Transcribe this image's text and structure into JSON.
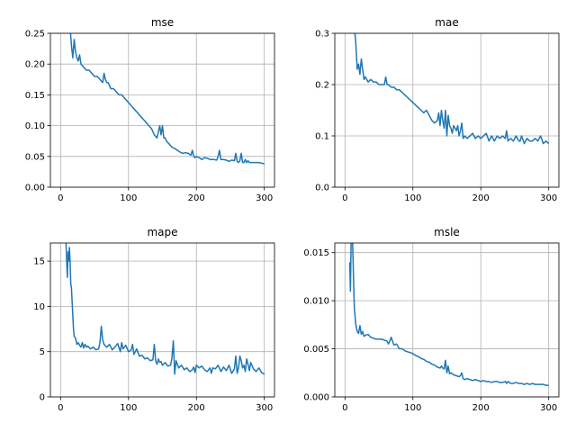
{
  "figure": {
    "background": "#ffffff",
    "line_color": "#1f77b4",
    "grid": true
  },
  "chart_data": [
    {
      "type": "line",
      "title": "mse",
      "xlim": [
        -15,
        315
      ],
      "ylim": [
        0,
        0.25
      ],
      "xticks": [
        0,
        100,
        200,
        300
      ],
      "xtick_labels": [
        "0",
        "100",
        "200",
        "300"
      ],
      "yticks": [
        0,
        0.05,
        0.1,
        0.15,
        0.2,
        0.25
      ],
      "ytick_labels": [
        "0.00",
        "0.05",
        "0.10",
        "0.15",
        "0.20",
        "0.25"
      ],
      "series": [
        {
          "x": [
            10,
            14,
            16,
            18,
            20,
            22,
            24,
            26,
            28,
            30,
            34,
            38,
            42,
            46,
            50,
            54,
            58,
            62,
            64,
            66,
            68,
            70,
            74,
            78,
            82,
            86,
            90,
            94,
            98,
            102,
            106,
            110,
            114,
            118,
            122,
            126,
            130,
            134,
            138,
            142,
            144,
            146,
            148,
            150,
            152,
            154,
            156,
            160,
            164,
            168,
            172,
            176,
            180,
            184,
            188,
            192,
            194,
            196,
            198,
            200,
            204,
            208,
            212,
            216,
            220,
            226,
            230,
            232,
            234,
            236,
            240,
            244,
            248,
            252,
            256,
            258,
            260,
            262,
            264,
            266,
            268,
            270,
            272,
            274,
            276,
            278,
            280,
            284,
            288,
            292,
            296,
            300
          ],
          "y": [
            0.27,
            0.26,
            0.23,
            0.21,
            0.24,
            0.22,
            0.21,
            0.205,
            0.215,
            0.2,
            0.195,
            0.19,
            0.19,
            0.185,
            0.18,
            0.18,
            0.175,
            0.17,
            0.185,
            0.175,
            0.17,
            0.17,
            0.16,
            0.16,
            0.155,
            0.15,
            0.15,
            0.145,
            0.14,
            0.135,
            0.13,
            0.125,
            0.12,
            0.115,
            0.11,
            0.105,
            0.1,
            0.095,
            0.085,
            0.08,
            0.09,
            0.1,
            0.085,
            0.1,
            0.08,
            0.08,
            0.075,
            0.07,
            0.065,
            0.063,
            0.06,
            0.057,
            0.055,
            0.056,
            0.055,
            0.052,
            0.06,
            0.05,
            0.048,
            0.05,
            0.048,
            0.045,
            0.048,
            0.047,
            0.045,
            0.045,
            0.044,
            0.05,
            0.06,
            0.045,
            0.045,
            0.044,
            0.042,
            0.044,
            0.043,
            0.055,
            0.042,
            0.04,
            0.043,
            0.055,
            0.04,
            0.04,
            0.045,
            0.04,
            0.043,
            0.04,
            0.04,
            0.04,
            0.04,
            0.04,
            0.039,
            0.038
          ]
        }
      ]
    },
    {
      "type": "line",
      "title": "mae",
      "xlim": [
        -15,
        315
      ],
      "ylim": [
        0,
        0.3
      ],
      "xticks": [
        0,
        100,
        200,
        300
      ],
      "xtick_labels": [
        "0",
        "100",
        "200",
        "300"
      ],
      "yticks": [
        0,
        0.1,
        0.2,
        0.3
      ],
      "ytick_labels": [
        "0.0",
        "0.1",
        "0.2",
        "0.3"
      ],
      "series": [
        {
          "x": [
            14,
            16,
            18,
            20,
            22,
            24,
            26,
            28,
            30,
            34,
            38,
            42,
            46,
            50,
            54,
            58,
            60,
            62,
            64,
            68,
            72,
            76,
            80,
            84,
            88,
            92,
            96,
            100,
            104,
            108,
            112,
            116,
            120,
            124,
            128,
            132,
            136,
            138,
            140,
            142,
            144,
            146,
            148,
            150,
            152,
            154,
            156,
            158,
            160,
            162,
            164,
            166,
            168,
            170,
            172,
            174,
            176,
            180,
            184,
            188,
            192,
            196,
            200,
            204,
            208,
            212,
            216,
            220,
            224,
            228,
            232,
            236,
            238,
            240,
            244,
            248,
            252,
            256,
            258,
            260,
            264,
            268,
            272,
            276,
            280,
            284,
            288,
            292,
            296,
            300
          ],
          "y": [
            0.31,
            0.28,
            0.23,
            0.24,
            0.22,
            0.25,
            0.23,
            0.21,
            0.215,
            0.205,
            0.21,
            0.205,
            0.205,
            0.2,
            0.2,
            0.2,
            0.215,
            0.2,
            0.2,
            0.195,
            0.195,
            0.19,
            0.19,
            0.185,
            0.18,
            0.175,
            0.17,
            0.165,
            0.16,
            0.155,
            0.15,
            0.145,
            0.15,
            0.14,
            0.13,
            0.125,
            0.13,
            0.145,
            0.12,
            0.15,
            0.13,
            0.115,
            0.15,
            0.1,
            0.14,
            0.12,
            0.115,
            0.105,
            0.12,
            0.115,
            0.11,
            0.12,
            0.1,
            0.11,
            0.125,
            0.095,
            0.1,
            0.095,
            0.1,
            0.105,
            0.095,
            0.1,
            0.095,
            0.1,
            0.105,
            0.09,
            0.1,
            0.09,
            0.1,
            0.095,
            0.1,
            0.095,
            0.11,
            0.09,
            0.095,
            0.09,
            0.1,
            0.09,
            0.09,
            0.1,
            0.085,
            0.095,
            0.09,
            0.09,
            0.095,
            0.09,
            0.1,
            0.085,
            0.09,
            0.085
          ]
        }
      ]
    },
    {
      "type": "line",
      "title": "mape",
      "xlim": [
        -15,
        315
      ],
      "ylim": [
        0,
        17
      ],
      "xticks": [
        0,
        100,
        200,
        300
      ],
      "xtick_labels": [
        "0",
        "100",
        "200",
        "300"
      ],
      "yticks": [
        0,
        5,
        10,
        15
      ],
      "ytick_labels": [
        "0",
        "5",
        "10",
        "15"
      ],
      "series": [
        {
          "x": [
            8,
            9,
            10,
            11,
            12,
            13,
            14,
            15,
            16,
            17,
            18,
            19,
            20,
            22,
            24,
            26,
            28,
            30,
            32,
            34,
            36,
            38,
            40,
            44,
            48,
            52,
            56,
            58,
            60,
            62,
            64,
            68,
            72,
            76,
            80,
            84,
            88,
            90,
            92,
            96,
            100,
            104,
            106,
            108,
            112,
            116,
            120,
            124,
            128,
            132,
            136,
            138,
            140,
            142,
            144,
            146,
            148,
            150,
            154,
            158,
            162,
            164,
            166,
            168,
            170,
            174,
            178,
            182,
            186,
            190,
            194,
            196,
            198,
            200,
            204,
            208,
            212,
            216,
            220,
            222,
            224,
            228,
            232,
            236,
            240,
            244,
            248,
            252,
            256,
            258,
            260,
            262,
            264,
            266,
            268,
            270,
            272,
            274,
            276,
            278,
            280,
            284,
            288,
            292,
            296,
            300
          ],
          "y": [
            17,
            15,
            13.2,
            16,
            15,
            16.5,
            15,
            12.5,
            12,
            10.5,
            9,
            7.5,
            6.7,
            6.5,
            5.8,
            6,
            5.7,
            5.5,
            6,
            5.4,
            5.8,
            5.5,
            5.6,
            5.3,
            5.5,
            5.2,
            5.3,
            6,
            7.8,
            6.3,
            5.8,
            5.5,
            5.8,
            5.2,
            5.5,
            5.9,
            5,
            6,
            5.3,
            5.7,
            5,
            5.2,
            5.8,
            4.7,
            5.3,
            4.5,
            4.6,
            4.2,
            4.3,
            4,
            4.1,
            5.8,
            4,
            3.6,
            4.2,
            3.8,
            3.9,
            3.5,
            3.8,
            3.4,
            3.5,
            4.3,
            6.2,
            2.5,
            4,
            3.2,
            3.5,
            3,
            3.2,
            2.8,
            3,
            3.3,
            2.7,
            3.5,
            3.2,
            3.4,
            3,
            2.8,
            3.2,
            2.6,
            3.2,
            3.1,
            3.5,
            2.8,
            3.3,
            2.9,
            3.5,
            2.6,
            3.1,
            4.5,
            2.6,
            3.2,
            4.5,
            4,
            3.2,
            3.5,
            2.8,
            4.2,
            3.6,
            2.9,
            3.8,
            3.1,
            2.8,
            3.2,
            2.7,
            2.5
          ]
        }
      ]
    },
    {
      "type": "line",
      "title": "msle",
      "xlim": [
        -15,
        315
      ],
      "ylim": [
        0,
        0.016
      ],
      "xticks": [
        0,
        100,
        200,
        300
      ],
      "xtick_labels": [
        "0",
        "100",
        "200",
        "300"
      ],
      "yticks": [
        0,
        0.005,
        0.01,
        0.015
      ],
      "ytick_labels": [
        "0.000",
        "0.005",
        "0.010",
        "0.015"
      ],
      "series": [
        {
          "x": [
            7,
            8,
            9,
            10,
            11,
            12,
            13,
            14,
            16,
            18,
            20,
            22,
            24,
            26,
            28,
            30,
            34,
            38,
            42,
            46,
            50,
            54,
            58,
            62,
            64,
            66,
            68,
            72,
            76,
            80,
            84,
            88,
            92,
            96,
            100,
            104,
            108,
            112,
            116,
            120,
            124,
            128,
            132,
            136,
            140,
            142,
            144,
            146,
            148,
            150,
            152,
            154,
            156,
            160,
            164,
            168,
            170,
            172,
            174,
            176,
            180,
            184,
            188,
            192,
            196,
            200,
            204,
            208,
            212,
            216,
            220,
            224,
            228,
            232,
            236,
            238,
            240,
            244,
            248,
            252,
            256,
            260,
            264,
            268,
            272,
            276,
            280,
            284,
            288,
            292,
            296,
            300
          ],
          "y": [
            0.014,
            0.011,
            0.016,
            0.017,
            0.0165,
            0.014,
            0.011,
            0.009,
            0.0075,
            0.0068,
            0.0066,
            0.0074,
            0.0065,
            0.0068,
            0.0063,
            0.0064,
            0.0065,
            0.0062,
            0.0061,
            0.006,
            0.006,
            0.006,
            0.0059,
            0.0058,
            0.0055,
            0.0058,
            0.0062,
            0.0054,
            0.0055,
            0.005,
            0.005,
            0.0048,
            0.0047,
            0.0046,
            0.0045,
            0.0043,
            0.0042,
            0.004,
            0.0039,
            0.0037,
            0.0036,
            0.0034,
            0.0033,
            0.0031,
            0.003,
            0.0032,
            0.003,
            0.0029,
            0.0038,
            0.0025,
            0.0032,
            0.0024,
            0.0025,
            0.0023,
            0.0022,
            0.0021,
            0.0022,
            0.0025,
            0.0019,
            0.0018,
            0.0019,
            0.0018,
            0.0017,
            0.0018,
            0.0017,
            0.0016,
            0.0017,
            0.0016,
            0.0016,
            0.0015,
            0.0016,
            0.0016,
            0.0015,
            0.0015,
            0.0016,
            0.0014,
            0.0016,
            0.0014,
            0.0014,
            0.0015,
            0.0014,
            0.0014,
            0.0013,
            0.0014,
            0.0013,
            0.0014,
            0.0013,
            0.0013,
            0.0013,
            0.0013,
            0.0012,
            0.0012
          ]
        }
      ]
    }
  ]
}
